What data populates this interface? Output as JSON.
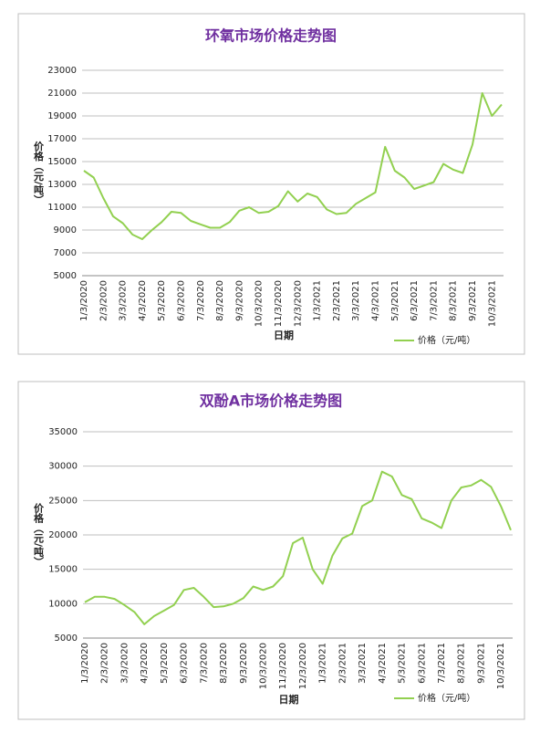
{
  "chart_data": [
    {
      "type": "line",
      "title": "环氧市场价格走势图",
      "y_label": "价格（元/吨）",
      "x_label": "日期",
      "categories": [
        "1/3/2020",
        null,
        "2/3/2020",
        null,
        "3/3/2020",
        null,
        "4/3/2020",
        null,
        "5/3/2020",
        null,
        "6/3/2020",
        null,
        "7/3/2020",
        null,
        "8/3/2020",
        null,
        "9/3/2020",
        null,
        "10/3/2020",
        null,
        "11/3/2020",
        null,
        "12/3/2020",
        null,
        "1/3/2021",
        null,
        "2/3/2021",
        null,
        "3/3/2021",
        null,
        "4/3/2021",
        null,
        "5/3/2021",
        null,
        "6/3/2021",
        null,
        "7/3/2021",
        null,
        "8/3/2021",
        null,
        "9/3/2021",
        null,
        "10/3/2021",
        null
      ],
      "series": [
        {
          "name": "价格（元/吨）",
          "color": "#92d050",
          "values": [
            14200,
            13600,
            11800,
            10200,
            9600,
            8600,
            8200,
            9000,
            9700,
            10600,
            10500,
            9800,
            9500,
            9200,
            9200,
            9700,
            10700,
            11000,
            10500,
            10600,
            11100,
            12400,
            11500,
            12200,
            11900,
            10800,
            10400,
            10500,
            11300,
            11800,
            12300,
            16300,
            14200,
            13600,
            12600,
            12900,
            13200,
            14800,
            14300,
            14000,
            16500,
            21000,
            19000,
            20000
          ]
        }
      ],
      "ylim": [
        5000,
        23000
      ],
      "yticks": [
        5000,
        7000,
        9000,
        11000,
        13000,
        15000,
        17000,
        19000,
        21000,
        23000
      ],
      "grid": true,
      "legend": "bottom-right"
    },
    {
      "type": "line",
      "title": "双酚A市场价格走势图",
      "y_label": "价格（元/吨）",
      "x_label": "日期",
      "categories": [
        "1/3/2020",
        null,
        "2/3/2020",
        null,
        "3/3/2020",
        null,
        "4/3/2020",
        null,
        "5/3/2020",
        null,
        "6/3/2020",
        null,
        "7/3/2020",
        null,
        "8/3/2020",
        null,
        "9/3/2020",
        null,
        "10/3/2020",
        null,
        "11/3/2020",
        null,
        "12/3/2020",
        null,
        "1/3/2021",
        null,
        "2/3/2021",
        null,
        "3/3/2021",
        null,
        "4/3/2021",
        null,
        "5/3/2021",
        null,
        "6/3/2021",
        null,
        "7/3/2021",
        null,
        "8/3/2021",
        null,
        "9/3/2021",
        null,
        "10/3/2021",
        null
      ],
      "series": [
        {
          "name": "价格（元/吨）",
          "color": "#92d050",
          "values": [
            10200,
            11000,
            11000,
            10700,
            9800,
            8800,
            7000,
            8200,
            9000,
            9800,
            12000,
            12300,
            11000,
            9500,
            9600,
            10000,
            10800,
            12500,
            12000,
            12500,
            14000,
            18800,
            19600,
            15000,
            12900,
            17000,
            19500,
            20200,
            24200,
            25000,
            29200,
            28500,
            25800,
            25200,
            22400,
            21800,
            21000,
            25000,
            26900,
            27200,
            28000,
            27000,
            24200,
            20700
          ]
        }
      ],
      "ylim": [
        5000,
        35000
      ],
      "yticks": [
        5000,
        10000,
        15000,
        20000,
        25000,
        30000,
        35000
      ],
      "grid": true,
      "legend": "bottom-right"
    }
  ]
}
